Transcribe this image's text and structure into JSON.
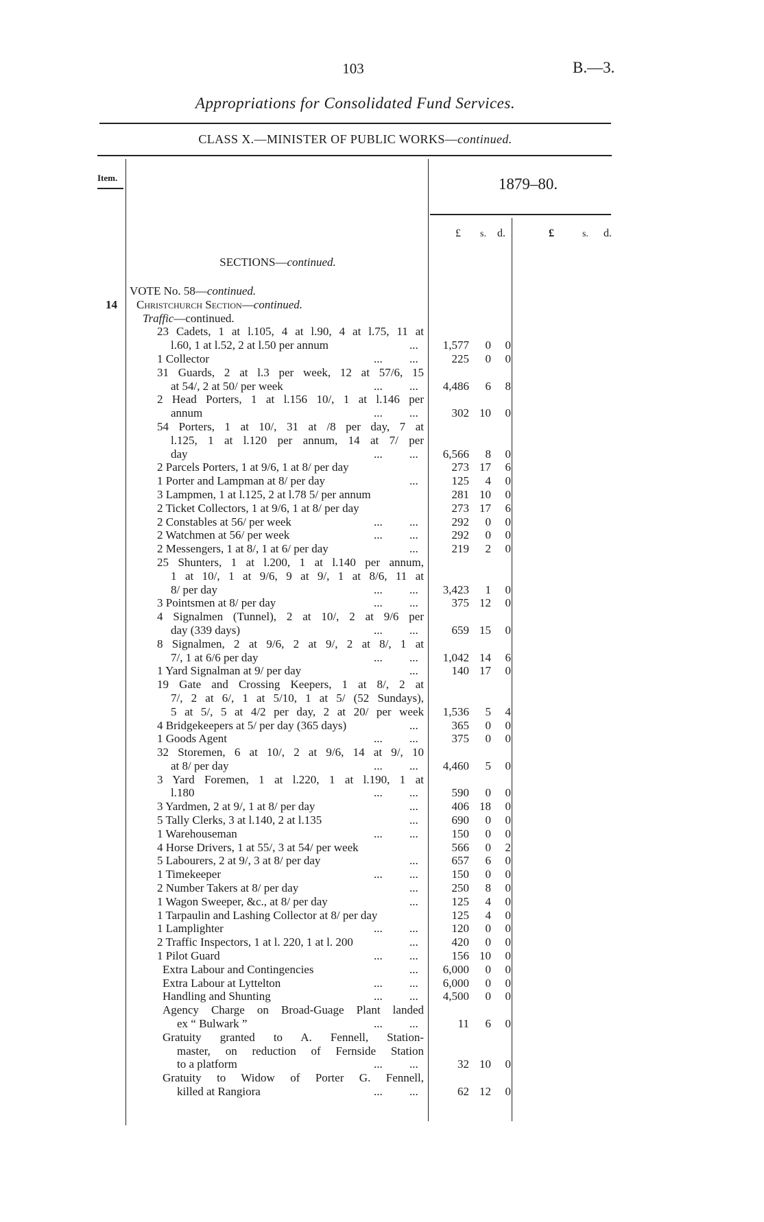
{
  "header": {
    "page_number": "103",
    "reference": "B.—3.",
    "title": "Appropriations for Consolidated Fund Services.",
    "class_heading": "CLASS X.—MINISTER OF PUBLIC WORKS—",
    "class_heading_cont": "continued."
  },
  "columns": {
    "item": "Item.",
    "year": "1879–80.",
    "currency_a": {
      "pounds": "£",
      "shillings": "s.",
      "pence": "d."
    },
    "currency_b": {
      "pounds": "£",
      "shillings": "s.",
      "pence": "d."
    }
  },
  "sections": {
    "label": "SECTIONS—",
    "cont": "continued."
  },
  "vote": {
    "label": "VOTE No. 58—",
    "cont": "continued."
  },
  "item_number": "14",
  "subsection": {
    "label": "Christchurch Section—",
    "cont": "continued."
  },
  "traffic": {
    "label": "Traffic",
    "cont": "—continued."
  },
  "staff": [
    {
      "lines": [
        "23 Cadets, 1 at l.105, 4 at l.90, 4 at l.75, 11 at",
        "l.60, 1 at l.52, 2 at l.50 per annum"
      ],
      "dots": [
        "",
        "..."
      ],
      "amount": [
        "1,577",
        "0",
        "0"
      ]
    },
    {
      "lines": [
        "1 Collector"
      ],
      "dots": [
        "...",
        "..."
      ],
      "amount": [
        "225",
        "0",
        "0"
      ]
    },
    {
      "lines": [
        "31 Guards, 2 at l.3 per week, 12 at 57/6, 15",
        "at 54/, 2 at 50/ per week"
      ],
      "dots": [
        "...",
        "..."
      ],
      "amount": [
        "4,486",
        "6",
        "8"
      ]
    },
    {
      "lines": [
        "2 Head Porters, 1 at l.156 10/, 1 at l.146 per",
        "annum"
      ],
      "dots": [
        "...",
        "..."
      ],
      "amount": [
        "302",
        "10",
        "0"
      ]
    },
    {
      "lines": [
        "54 Porters, 1 at 10/, 31 at /8 per day, 7 at",
        "l.125, 1 at l.120 per annum, 14 at 7/ per",
        "day"
      ],
      "dots": [
        "...",
        "..."
      ],
      "amount": [
        "6,566",
        "8",
        "0"
      ]
    },
    {
      "lines": [
        "2 Parcels Porters, 1 at 9/6, 1 at 8/ per day"
      ],
      "dots": [
        "",
        ""
      ],
      "amount": [
        "273",
        "17",
        "6"
      ]
    },
    {
      "lines": [
        "1 Porter and Lampman at 8/ per day"
      ],
      "dots": [
        "",
        "..."
      ],
      "amount": [
        "125",
        "4",
        "0"
      ]
    },
    {
      "lines": [
        "3 Lampmen, 1 at l.125, 2 at l.78 5/ per annum"
      ],
      "dots": [
        "",
        ""
      ],
      "amount": [
        "281",
        "10",
        "0"
      ]
    },
    {
      "lines": [
        "2 Ticket Collectors, 1 at 9/6, 1 at 8/ per day"
      ],
      "dots": [
        "",
        ""
      ],
      "amount": [
        "273",
        "17",
        "6"
      ]
    },
    {
      "lines": [
        "2 Constables at 56/ per week"
      ],
      "dots": [
        "...",
        "..."
      ],
      "amount": [
        "292",
        "0",
        "0"
      ]
    },
    {
      "lines": [
        "2 Watchmen at 56/ per week"
      ],
      "dots": [
        "...",
        "..."
      ],
      "amount": [
        "292",
        "0",
        "0"
      ]
    },
    {
      "lines": [
        "2 Messengers, 1 at 8/, 1 at 6/ per day"
      ],
      "dots": [
        "",
        "..."
      ],
      "amount": [
        "219",
        "2",
        "0"
      ]
    },
    {
      "lines": [
        "25 Shunters, 1 at l.200, 1 at l.140 per annum,",
        "1 at 10/, 1 at 9/6, 9 at 9/, 1 at 8/6, 11 at",
        "8/ per day"
      ],
      "dots": [
        "...",
        "..."
      ],
      "amount": [
        "3,423",
        "1",
        "0"
      ]
    },
    {
      "lines": [
        "3 Pointsmen at 8/ per day"
      ],
      "dots": [
        "...",
        "..."
      ],
      "amount": [
        "375",
        "12",
        "0"
      ]
    },
    {
      "lines": [
        "4 Signalmen (Tunnel), 2 at 10/, 2 at 9/6 per",
        "day (339 days)"
      ],
      "dots": [
        "...",
        "..."
      ],
      "amount": [
        "659",
        "15",
        "0"
      ]
    },
    {
      "lines": [
        "8 Signalmen, 2 at 9/6, 2 at 9/, 2 at 8/, 1 at",
        "7/, 1 at 6/6 per day"
      ],
      "dots": [
        "...",
        "..."
      ],
      "amount": [
        "1,042",
        "14",
        "6"
      ]
    },
    {
      "lines": [
        "1 Yard Signalman at 9/ per day"
      ],
      "dots": [
        "",
        "..."
      ],
      "amount": [
        "140",
        "17",
        "0"
      ]
    },
    {
      "lines": [
        "19 Gate and Crossing Keepers, 1 at 8/, 2 at",
        "7/, 2 at 6/, 1 at 5/10, 1 at 5/ (52 Sundays),",
        "5 at 5/, 5 at 4/2 per day, 2 at 20/ per week"
      ],
      "dots": [
        "",
        ""
      ],
      "amount": [
        "1,536",
        "5",
        "4"
      ]
    },
    {
      "lines": [
        "4 Bridgekeepers at 5/ per day (365 days)"
      ],
      "dots": [
        "",
        "..."
      ],
      "amount": [
        "365",
        "0",
        "0"
      ]
    },
    {
      "lines": [
        "1 Goods Agent"
      ],
      "dots": [
        "...",
        "..."
      ],
      "amount": [
        "375",
        "0",
        "0"
      ]
    },
    {
      "lines": [
        "32 Storemen, 6 at 10/, 2 at 9/6, 14 at 9/, 10",
        "at 8/ per day"
      ],
      "dots": [
        "...",
        "..."
      ],
      "amount": [
        "4,460",
        "5",
        "0"
      ]
    },
    {
      "lines": [
        "3 Yard Foremen, 1 at l.220, 1 at l.190, 1 at",
        "l.180"
      ],
      "dots": [
        "...",
        "..."
      ],
      "amount": [
        "590",
        "0",
        "0"
      ]
    },
    {
      "lines": [
        "3 Yardmen, 2 at 9/, 1 at 8/ per day"
      ],
      "dots": [
        "",
        "..."
      ],
      "amount": [
        "406",
        "18",
        "0"
      ]
    },
    {
      "lines": [
        "5 Tally Clerks, 3 at l.140, 2 at l.135"
      ],
      "dots": [
        "",
        "..."
      ],
      "amount": [
        "690",
        "0",
        "0"
      ]
    },
    {
      "lines": [
        "1 Warehouseman"
      ],
      "dots": [
        "...",
        "..."
      ],
      "amount": [
        "150",
        "0",
        "0"
      ]
    },
    {
      "lines": [
        "4 Horse Drivers, 1 at 55/, 3 at 54/ per week"
      ],
      "dots": [
        "",
        ""
      ],
      "amount": [
        "566",
        "0",
        "2"
      ]
    },
    {
      "lines": [
        "5 Labourers, 2 at 9/, 3 at 8/ per day"
      ],
      "dots": [
        "",
        "..."
      ],
      "amount": [
        "657",
        "6",
        "0"
      ]
    },
    {
      "lines": [
        "1 Timekeeper"
      ],
      "dots": [
        "...",
        "..."
      ],
      "amount": [
        "150",
        "0",
        "0"
      ]
    },
    {
      "lines": [
        "2 Number Takers at 8/ per day"
      ],
      "dots": [
        "",
        "..."
      ],
      "amount": [
        "250",
        "8",
        "0"
      ]
    },
    {
      "lines": [
        "1 Wagon Sweeper, &c., at 8/ per day"
      ],
      "dots": [
        "",
        "..."
      ],
      "amount": [
        "125",
        "4",
        "0"
      ]
    },
    {
      "lines": [
        "1 Tarpaulin and Lashing Collector at 8/ per day"
      ],
      "dots": [
        "",
        ""
      ],
      "amount": [
        "125",
        "4",
        "0"
      ]
    },
    {
      "lines": [
        "1 Lamplighter"
      ],
      "dots": [
        "...",
        "..."
      ],
      "amount": [
        "120",
        "0",
        "0"
      ]
    },
    {
      "lines": [
        "2 Traffic Inspectors, 1 at l. 220, 1 at l. 200"
      ],
      "dots": [
        "",
        "..."
      ],
      "amount": [
        "420",
        "0",
        "0"
      ]
    },
    {
      "lines": [
        "1 Pilot Guard"
      ],
      "dots": [
        "...",
        "..."
      ],
      "amount": [
        "156",
        "10",
        "0"
      ]
    }
  ],
  "other_charges": [
    {
      "lines": [
        "Extra Labour and Contingencies"
      ],
      "dots": [
        "",
        "..."
      ],
      "amount": [
        "6,000",
        "0",
        "0"
      ]
    },
    {
      "lines": [
        "Extra Labour at Lyttelton"
      ],
      "dots": [
        "...",
        "..."
      ],
      "amount": [
        "6,000",
        "0",
        "0"
      ]
    },
    {
      "lines": [
        "Handling and Shunting"
      ],
      "dots": [
        "...",
        "..."
      ],
      "amount": [
        "4,500",
        "0",
        "0"
      ]
    },
    {
      "lines": [
        "Agency Charge on Broad-Guage Plant landed",
        "ex “ Bulwark ”"
      ],
      "dots": [
        "...",
        "..."
      ],
      "amount": [
        "11",
        "6",
        "0"
      ]
    },
    {
      "lines": [
        "Gratuity granted to A. Fennell, Station-",
        "master, on reduction of Fernside Station",
        "to a platform"
      ],
      "dots": [
        "...",
        "..."
      ],
      "amount": [
        "32",
        "10",
        "0"
      ]
    },
    {
      "lines": [
        "Gratuity to Widow of Porter G. Fennell,",
        "killed at Rangiora"
      ],
      "dots": [
        "...",
        "..."
      ],
      "amount": [
        "62",
        "12",
        "0"
      ]
    }
  ]
}
